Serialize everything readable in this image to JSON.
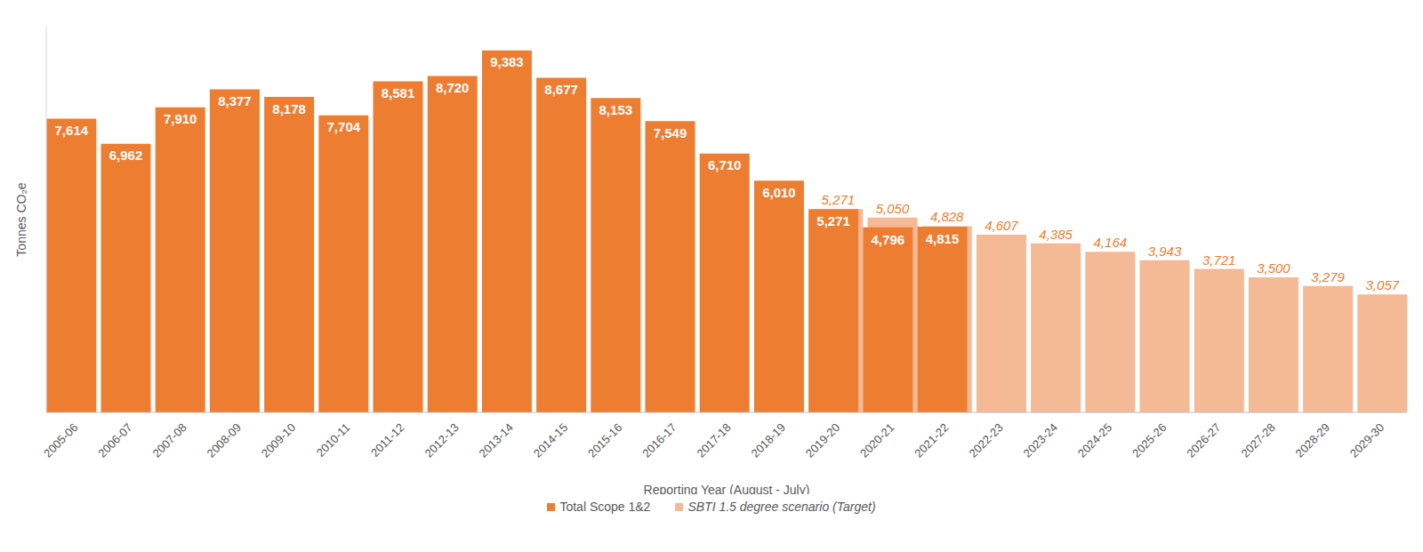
{
  "chart_data": {
    "type": "bar",
    "x_label": "Reporting Year (August - July)",
    "y_label": "Tonnes CO₂e",
    "categories": [
      "2005-06",
      "2006-07",
      "2007-08",
      "2008-09",
      "2009-10",
      "2010-11",
      "2011-12",
      "2012-13",
      "2013-14",
      "2014-15",
      "2015-16",
      "2016-17",
      "2017-18",
      "2018-19",
      "2019-20",
      "2020-21",
      "2021-22",
      "2022-23",
      "2023-24",
      "2024-25",
      "2025-26",
      "2026-27",
      "2027-28",
      "2028-29",
      "2029-30"
    ],
    "series": [
      {
        "name": "Total Scope 1&2",
        "color": "#ed7d31",
        "values": [
          7614,
          6962,
          7910,
          8377,
          8178,
          7704,
          8581,
          8720,
          9383,
          8677,
          8153,
          7549,
          6710,
          6010,
          5271,
          4796,
          4815,
          null,
          null,
          null,
          null,
          null,
          null,
          null,
          null
        ],
        "value_labels": [
          "7,614",
          "6,962",
          "7,910",
          "8,377",
          "8,178",
          "7,704",
          "8,581",
          "8,720",
          "9,383",
          "8,677",
          "8,153",
          "7,549",
          "6,710",
          "6,010",
          "5,271",
          "4,796",
          "4,815",
          null,
          null,
          null,
          null,
          null,
          null,
          null,
          null
        ]
      },
      {
        "name": "SBTI 1.5 degree scenario (Target)",
        "color": "#f4b995",
        "values": [
          null,
          null,
          null,
          null,
          null,
          null,
          null,
          null,
          null,
          null,
          null,
          null,
          null,
          null,
          5271,
          5050,
          4828,
          4607,
          4385,
          4164,
          3943,
          3721,
          3500,
          3279,
          3057
        ],
        "value_labels": [
          null,
          null,
          null,
          null,
          null,
          null,
          null,
          null,
          null,
          null,
          null,
          null,
          null,
          null,
          "5,271",
          "5,050",
          "4,828",
          "4,607",
          "4,385",
          "4,164",
          "3,943",
          "3,721",
          "3,500",
          "3,279",
          "3,057"
        ]
      }
    ],
    "ylim": [
      0,
      10000
    ],
    "data_labels": true,
    "tick_labels": "x",
    "grid": false,
    "legend": "bottom"
  }
}
